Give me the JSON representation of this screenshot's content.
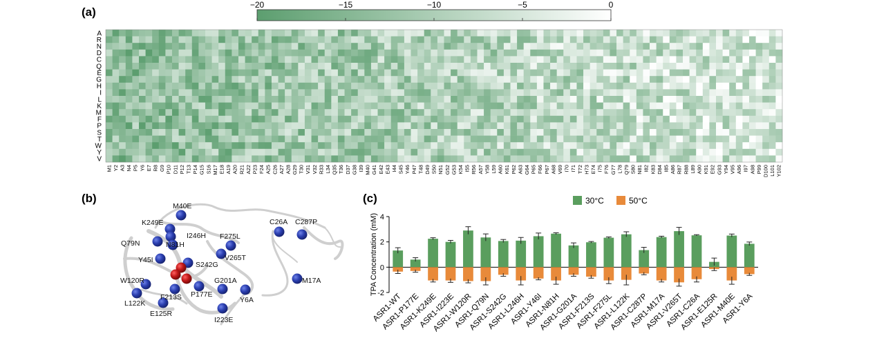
{
  "panels": {
    "a": "(a)",
    "b": "(b)",
    "c": "(c)"
  },
  "colorbar": {
    "ticks": [
      "−20",
      "−15",
      "−10",
      "−5",
      "0"
    ],
    "min": -20,
    "max": 0,
    "low_color": "#5c9e6f",
    "high_color": "#ffffff"
  },
  "heatmap": {
    "rows": [
      "A",
      "R",
      "N",
      "D",
      "C",
      "Q",
      "E",
      "G",
      "H",
      "I",
      "L",
      "K",
      "M",
      "F",
      "P",
      "S",
      "T",
      "W",
      "Y",
      "V"
    ],
    "columns": [
      "M1",
      "Y2",
      "A3",
      "N4",
      "P5",
      "Y6",
      "E7",
      "R8",
      "G9",
      "P10",
      "D11",
      "P12",
      "T13",
      "P14",
      "G15",
      "S16",
      "M17",
      "E18",
      "A19",
      "A20",
      "R21",
      "A22",
      "P23",
      "F24",
      "A25",
      "C26",
      "A27",
      "A28",
      "G29",
      "T30",
      "V31",
      "V32",
      "R33",
      "L34",
      "Q35",
      "T36",
      "D37",
      "G38",
      "I39",
      "M40",
      "G41",
      "E42",
      "E43",
      "I44",
      "S45",
      "Y46",
      "P47",
      "T48",
      "D49",
      "S50",
      "N51",
      "G52",
      "G53",
      "K54",
      "I55",
      "R56",
      "A57",
      "Y58",
      "L59",
      "A60",
      "K61",
      "P62",
      "A63",
      "G64",
      "P65",
      "F66",
      "P67",
      "A68",
      "V69",
      "I70",
      "I71",
      "T72",
      "H73",
      "E74",
      "I75",
      "F76",
      "G77",
      "L78",
      "Q79",
      "S80",
      "N81",
      "I82",
      "K83",
      "D84",
      "I85",
      "A86",
      "R87",
      "R88",
      "L89",
      "A90",
      "K91",
      "E92",
      "G93",
      "Y94",
      "V95",
      "A96",
      "I97",
      "A98",
      "P99",
      "D100",
      "L101",
      "Y102"
    ]
  },
  "structure": {
    "labels": [
      "M40E",
      "K249E",
      "I246H",
      "F275L",
      "Q79N",
      "N81H",
      "V265T",
      "C26A",
      "C287P",
      "Y45I",
      "S242G",
      "W120R",
      "G201A",
      "M17A",
      "L122K",
      "F213S",
      "P177E",
      "Y6A",
      "E125R",
      "I223E"
    ]
  },
  "chart_data": [
    {
      "type": "heatmap",
      "rows": "heatmap.rows",
      "columns": "heatmap.columns",
      "value_range": [
        -20,
        0
      ],
      "note_values": "per-cell values estimated; light = near 0, dark green = near -20"
    },
    {
      "type": "bar",
      "ylabel": "TPA Concentration (mM)",
      "ylim": [
        -2,
        4
      ],
      "yticks": [
        -2,
        0,
        2,
        4
      ],
      "legend_position": "top",
      "categories": [
        "ASR1-WT",
        "ASR1-P177E",
        "ASR1-K249E",
        "ASR1-I223E",
        "ASR1-W120R",
        "ASR1-Q79N",
        "ASR1-S242G",
        "ASR1-L246H",
        "ASR1-Y46I",
        "ASR1-N81H",
        "ASR1-G201A",
        "ASR1-F213S",
        "ASR1-F275L",
        "ASR1-L122K",
        "ASR1-C287P",
        "ASR1-M17A",
        "ASR1-V265T",
        "ASR1-C26A",
        "ASR1-E125R",
        "ASR1-M40E",
        "ASR1-Y6A"
      ],
      "series": [
        {
          "name": "30°C",
          "color": "#5a9e5e",
          "values": [
            1.32,
            0.6,
            2.25,
            2.0,
            2.9,
            2.35,
            2.07,
            2.1,
            2.45,
            2.65,
            1.72,
            1.97,
            2.33,
            2.6,
            1.35,
            2.38,
            2.85,
            2.52,
            0.42,
            2.5,
            1.85
          ],
          "errors": [
            0.22,
            0.15,
            0.08,
            0.12,
            0.3,
            0.28,
            0.12,
            0.25,
            0.25,
            0.07,
            0.2,
            0.06,
            0.06,
            0.2,
            0.22,
            0.07,
            0.3,
            0.05,
            0.3,
            0.12,
            0.14
          ]
        },
        {
          "name": "50°C",
          "color": "#e88a3a",
          "values": [
            -0.35,
            -0.3,
            -1.05,
            -1.05,
            -1.1,
            -1.1,
            -0.6,
            -1.05,
            -0.9,
            -1.05,
            -0.6,
            -0.75,
            -1.05,
            -1.0,
            -0.5,
            -1.05,
            -1.2,
            -0.95,
            -0.15,
            -1.05,
            -0.55
          ],
          "errors": [
            0.15,
            0.1,
            0.12,
            0.15,
            0.14,
            0.3,
            0.12,
            0.35,
            0.1,
            0.3,
            0.12,
            0.12,
            0.25,
            0.4,
            0.1,
            0.12,
            0.3,
            0.22,
            0.12,
            0.3,
            0.1
          ]
        }
      ]
    }
  ]
}
